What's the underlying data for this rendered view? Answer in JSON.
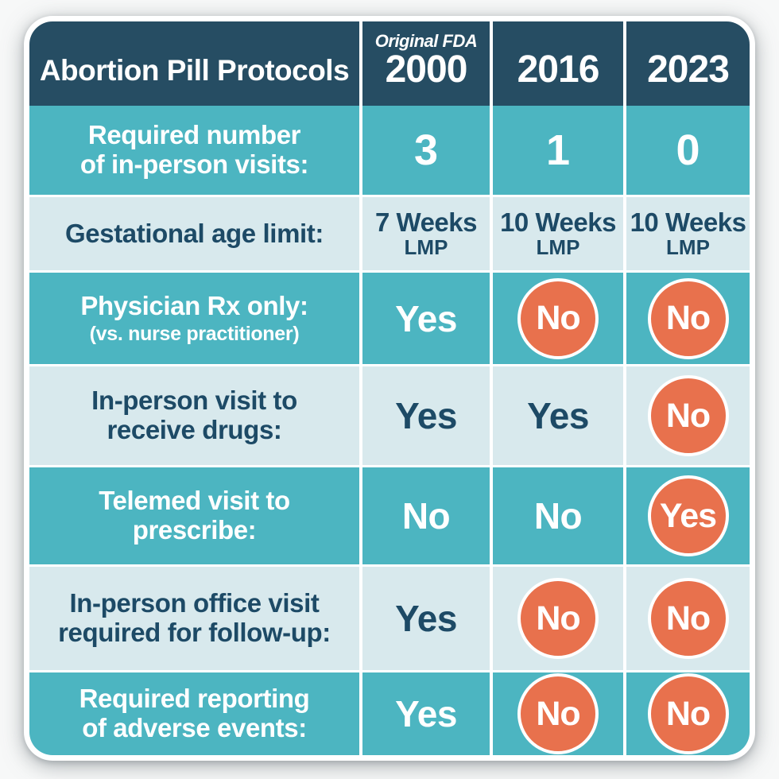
{
  "title": "Abortion Pill Protocols",
  "columns": [
    {
      "note": "Original FDA",
      "year": "2000"
    },
    {
      "note": "",
      "year": "2016"
    },
    {
      "note": "",
      "year": "2023"
    }
  ],
  "rows": [
    {
      "line1": "Required number",
      "line2": "of in-person visits:",
      "values": [
        {
          "text": "3",
          "circled": false
        },
        {
          "text": "1",
          "circled": false
        },
        {
          "text": "0",
          "circled": false
        }
      ]
    },
    {
      "line1": "Gestational age limit:",
      "line2": "",
      "values": [
        {
          "text": "7 Weeks",
          "sub": "LMP",
          "circled": false
        },
        {
          "text": "10 Weeks",
          "sub": "LMP",
          "circled": false
        },
        {
          "text": "10 Weeks",
          "sub": "LMP",
          "circled": false
        }
      ]
    },
    {
      "line1": "Physician Rx only:",
      "line2": "(vs. nurse practitioner)",
      "values": [
        {
          "text": "Yes",
          "circled": false
        },
        {
          "text": "No",
          "circled": true
        },
        {
          "text": "No",
          "circled": true
        }
      ]
    },
    {
      "line1": "In-person visit to",
      "line2": "receive drugs:",
      "values": [
        {
          "text": "Yes",
          "circled": false
        },
        {
          "text": "Yes",
          "circled": false
        },
        {
          "text": "No",
          "circled": true
        }
      ]
    },
    {
      "line1": "Telemed visit to",
      "line2": "prescribe:",
      "values": [
        {
          "text": "No",
          "circled": false
        },
        {
          "text": "No",
          "circled": false
        },
        {
          "text": "Yes",
          "circled": true
        }
      ]
    },
    {
      "line1": "In-person office visit",
      "line2": "required for follow-up:",
      "values": [
        {
          "text": "Yes",
          "circled": false
        },
        {
          "text": "No",
          "circled": true
        },
        {
          "text": "No",
          "circled": true
        }
      ]
    },
    {
      "line1": "Required reporting",
      "line2": "of adverse events:",
      "values": [
        {
          "text": "Yes",
          "circled": false
        },
        {
          "text": "No",
          "circled": true
        },
        {
          "text": "No",
          "circled": true
        }
      ]
    }
  ],
  "colors": {
    "header_navy": "#264d63",
    "row_teal": "#4cb5c1",
    "row_light_blue": "#d8e9ed",
    "badge_orange": "#e8714d",
    "text_navy": "#1d4a66",
    "separator_white": "#ffffff"
  },
  "chart_data": {
    "type": "table",
    "title": "Abortion Pill Protocols",
    "columns": [
      "Original FDA 2000",
      "2016",
      "2023"
    ],
    "rows": [
      {
        "label": "Required number of in-person visits:",
        "values": [
          "3",
          "1",
          "0"
        ],
        "circled": [
          false,
          false,
          false
        ]
      },
      {
        "label": "Gestational age limit:",
        "values": [
          "7 Weeks LMP",
          "10 Weeks LMP",
          "10 Weeks LMP"
        ],
        "circled": [
          false,
          false,
          false
        ]
      },
      {
        "label": "Physician Rx only: (vs. nurse practitioner)",
        "values": [
          "Yes",
          "No",
          "No"
        ],
        "circled": [
          false,
          true,
          true
        ]
      },
      {
        "label": "In-person visit to receive drugs:",
        "values": [
          "Yes",
          "Yes",
          "No"
        ],
        "circled": [
          false,
          false,
          true
        ]
      },
      {
        "label": "Telemed visit to prescribe:",
        "values": [
          "No",
          "No",
          "Yes"
        ],
        "circled": [
          false,
          false,
          true
        ]
      },
      {
        "label": "In-person office visit required for follow-up:",
        "values": [
          "Yes",
          "No",
          "No"
        ],
        "circled": [
          false,
          true,
          true
        ]
      },
      {
        "label": "Required reporting of adverse events:",
        "values": [
          "Yes",
          "No",
          "No"
        ],
        "circled": [
          false,
          true,
          true
        ]
      }
    ],
    "legend_position": "none",
    "grid": "white separators between rows and columns"
  }
}
